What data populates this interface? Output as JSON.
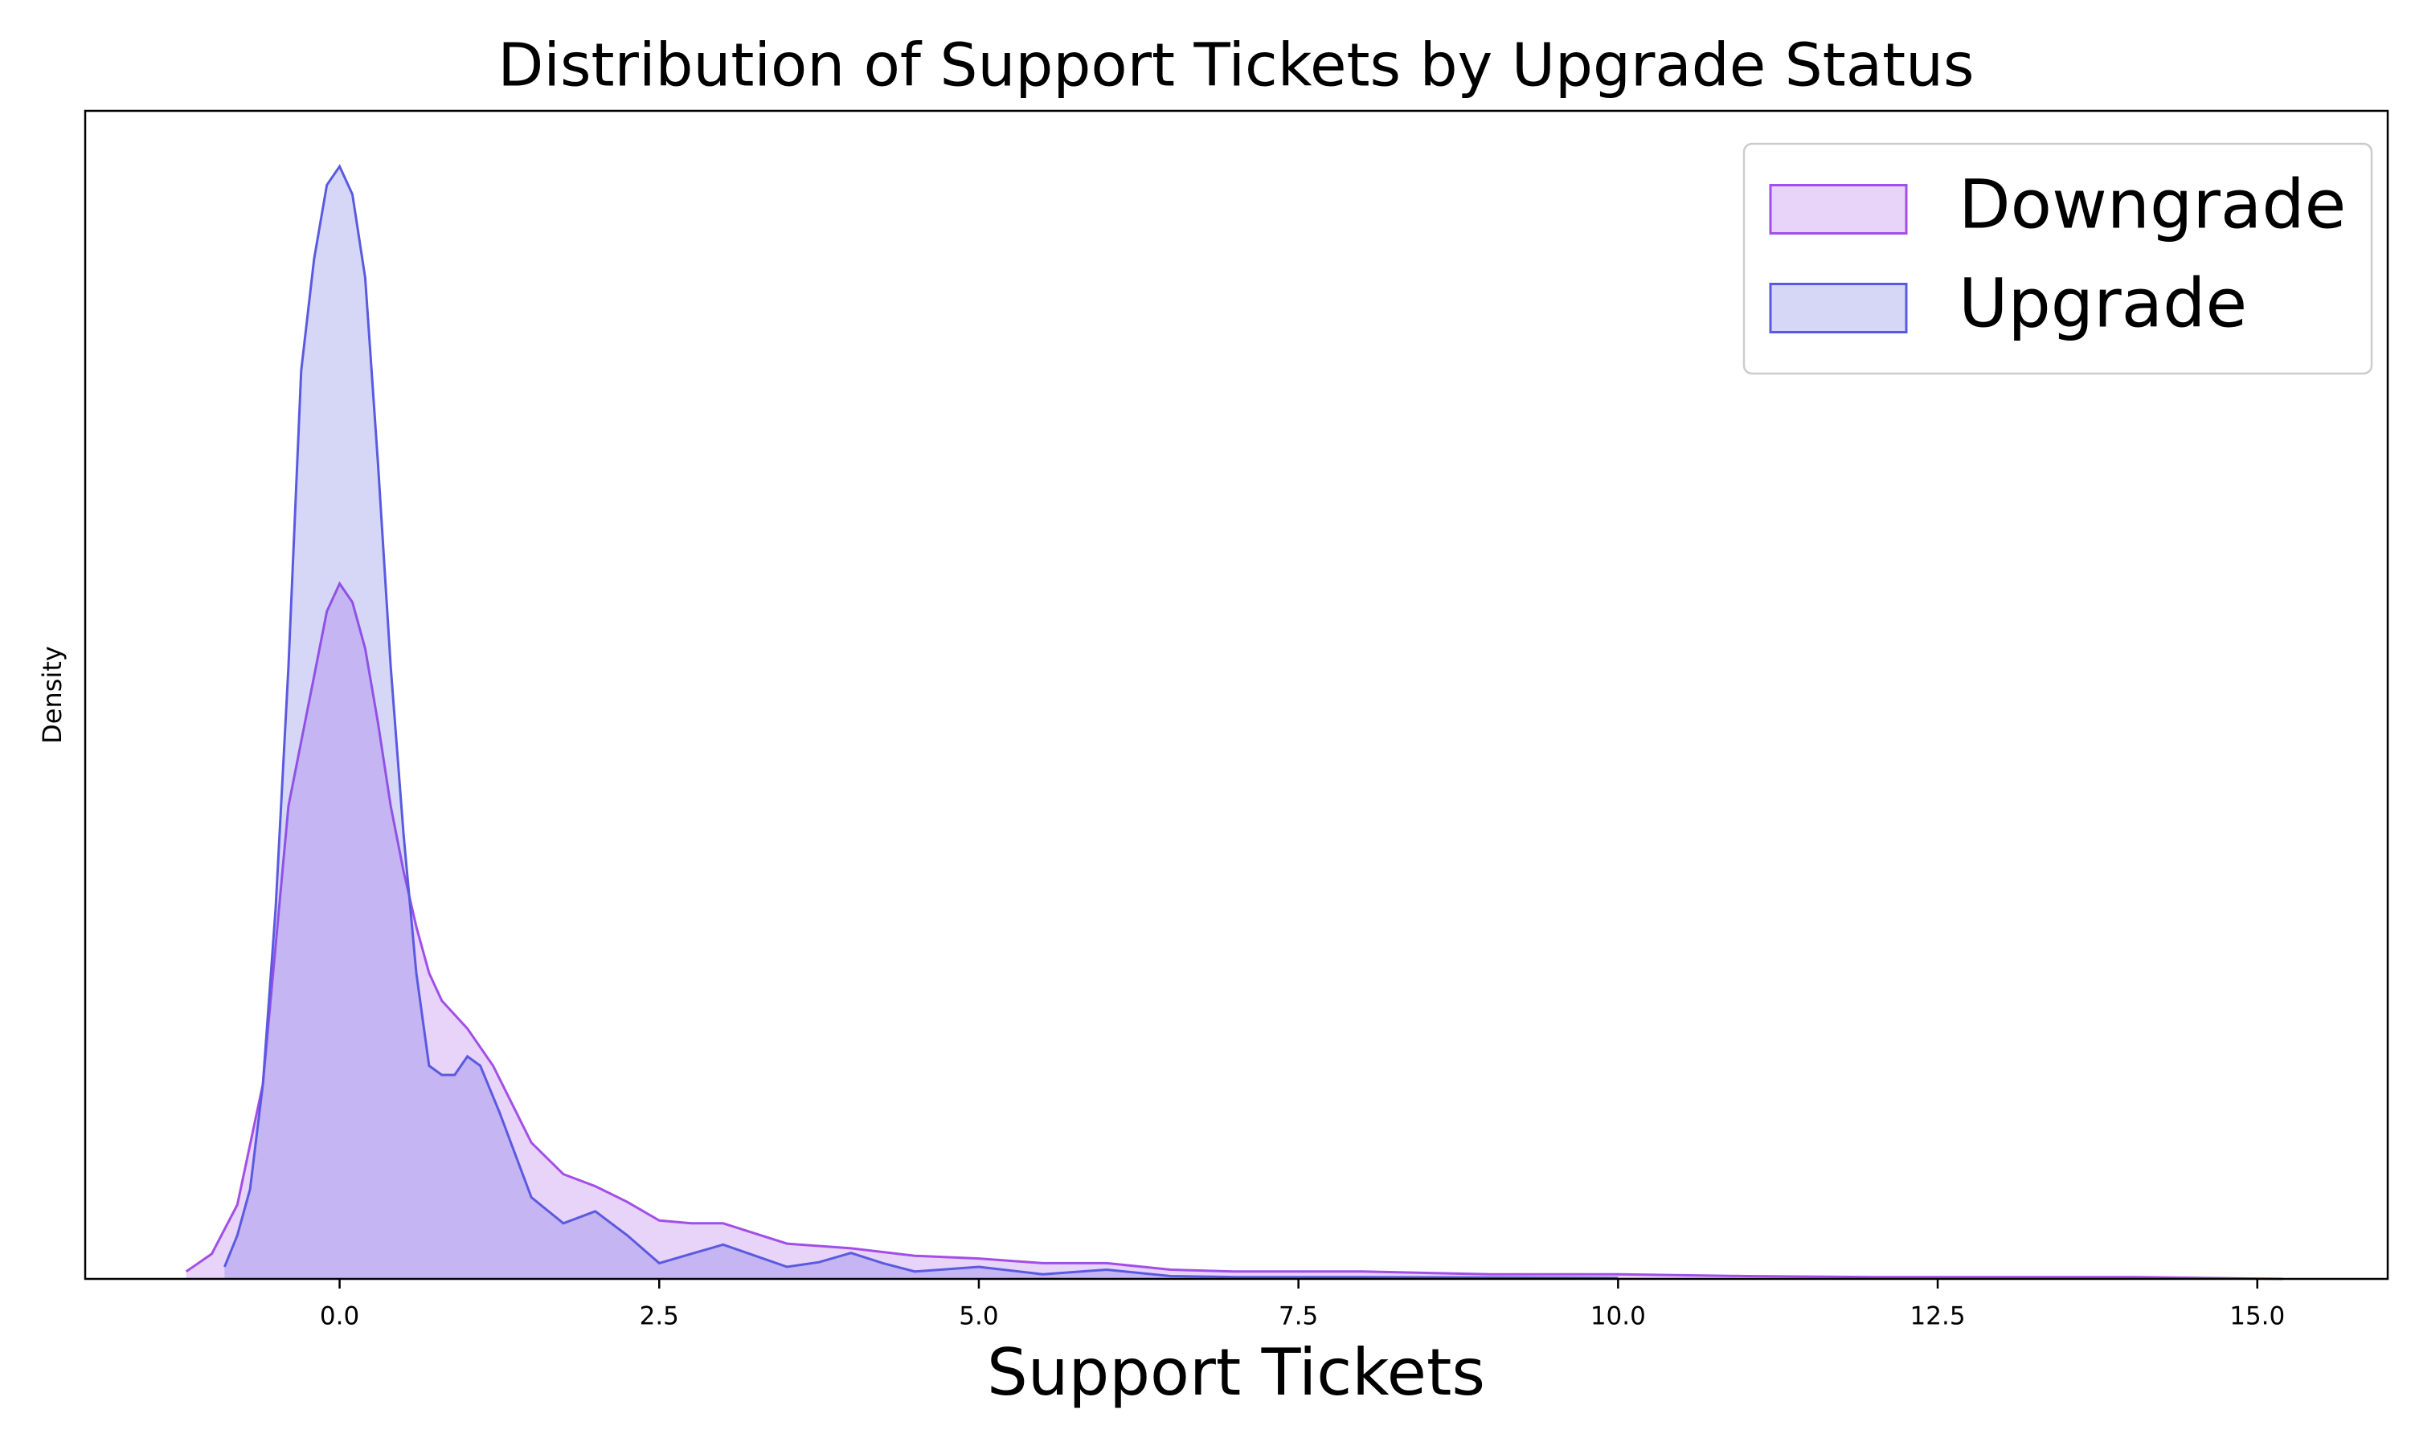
{
  "chart_data": {
    "type": "kde",
    "title": "Distribution of Support Tickets by Upgrade Status",
    "x_label": "Support Tickets",
    "y_label": "Density",
    "xlim": [
      -1.99,
      16.02
    ],
    "ylim": [
      0,
      1.26
    ],
    "xticks": [
      {
        "value": 0,
        "label": "0.0"
      },
      2.5,
      {
        "value": 5,
        "label": "5.0"
      },
      7.5,
      {
        "value": 10,
        "label": "10.0"
      },
      12.5,
      {
        "value": 15,
        "label": "15.0"
      }
    ],
    "legend": "upper right",
    "series": [
      {
        "name": "Downgrade",
        "color": "#a24ee8",
        "x": [
          -1.2,
          -1.0,
          -0.8,
          -0.6,
          -0.4,
          -0.2,
          -0.1,
          0.0,
          0.1,
          0.2,
          0.3,
          0.4,
          0.5,
          0.6,
          0.7,
          0.8,
          1.0,
          1.2,
          1.5,
          1.75,
          2.0,
          2.25,
          2.5,
          2.75,
          3.0,
          3.5,
          4.0,
          4.5,
          5.0,
          5.5,
          6.0,
          6.5,
          7.0,
          8.0,
          9.0,
          10.0,
          11.0,
          12.0,
          13.0,
          14.0,
          15.2
        ],
        "values": [
          0.008,
          0.027,
          0.08,
          0.21,
          0.51,
          0.65,
          0.72,
          0.75,
          0.73,
          0.68,
          0.6,
          0.51,
          0.44,
          0.38,
          0.33,
          0.3,
          0.27,
          0.23,
          0.147,
          0.113,
          0.1,
          0.083,
          0.063,
          0.06,
          0.06,
          0.038,
          0.033,
          0.025,
          0.022,
          0.017,
          0.017,
          0.01,
          0.008,
          0.008,
          0.005,
          0.005,
          0.003,
          0.002,
          0.002,
          0.002,
          0.0
        ]
      },
      {
        "name": "Upgrade",
        "color": "#5a5ae0",
        "x": [
          -0.9,
          -0.8,
          -0.7,
          -0.6,
          -0.5,
          -0.4,
          -0.3,
          -0.2,
          -0.1,
          0.0,
          0.1,
          0.2,
          0.3,
          0.4,
          0.5,
          0.6,
          0.7,
          0.8,
          0.9,
          1.0,
          1.1,
          1.25,
          1.5,
          1.75,
          2.0,
          2.25,
          2.5,
          2.75,
          3.0,
          3.25,
          3.5,
          3.75,
          4.0,
          4.25,
          4.5,
          5.0,
          5.5,
          6.0,
          6.5,
          7.0,
          8.0,
          10.0
        ],
        "values": [
          0.013,
          0.047,
          0.097,
          0.21,
          0.4,
          0.66,
          0.98,
          1.1,
          1.18,
          1.2,
          1.17,
          1.08,
          0.88,
          0.66,
          0.48,
          0.33,
          0.23,
          0.22,
          0.22,
          0.24,
          0.23,
          0.18,
          0.088,
          0.06,
          0.073,
          0.047,
          0.017,
          0.027,
          0.037,
          0.025,
          0.013,
          0.018,
          0.028,
          0.017,
          0.008,
          0.013,
          0.005,
          0.01,
          0.003,
          0.002,
          0.002,
          0.001
        ]
      }
    ]
  }
}
